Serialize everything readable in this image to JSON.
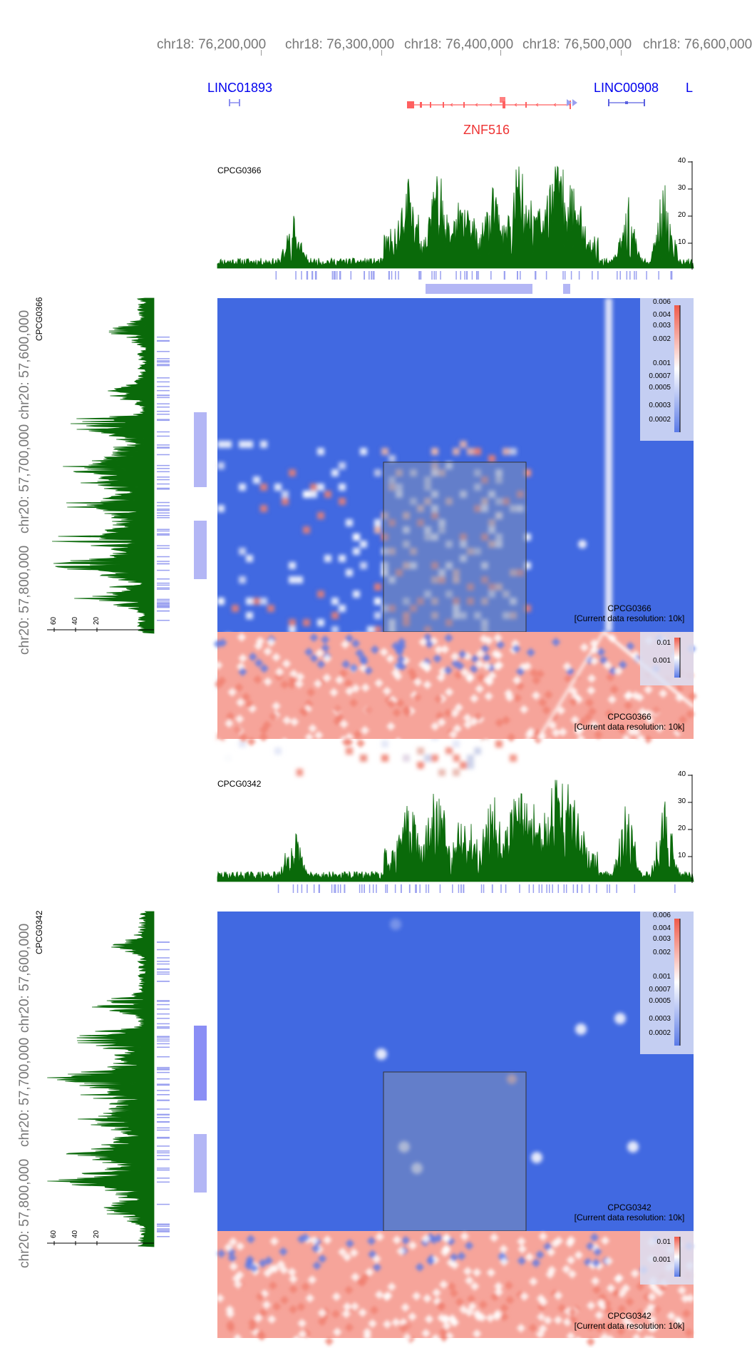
{
  "top_axis": {
    "labels": [
      "chr18: 76,200,000",
      "chr18: 76,300,000",
      "chr18: 76,400,000",
      "chr18: 76,500,000",
      "chr18: 76,600,000"
    ]
  },
  "genes": {
    "left_partial": "LINC01893",
    "main": "ZNF516",
    "right": "LINC00908",
    "far_right": "L"
  },
  "colors": {
    "signal": "#0a6a0a",
    "peaks": "#9aa0f0",
    "heatmap_base": "#4169e1",
    "gene_blue": "#0000ee",
    "gene_red": "#ee3333"
  },
  "left_axis": {
    "labels": [
      "chr20: 57,600,000",
      "chr20: 57,700,000",
      "chr20: 57,800,000"
    ],
    "ticks": [
      "60",
      "40",
      "20"
    ]
  },
  "panels": [
    {
      "sample": "CPCG0366",
      "track_ticks": [
        "40",
        "30",
        "20",
        "10"
      ],
      "legend_ticks": [
        "0.006",
        "0.004",
        "0.003",
        "0.002",
        "0.001",
        "0.0007",
        "0.0005",
        "0.0003",
        "0.0002"
      ],
      "lower_legend_ticks": [
        "0.01",
        "0.001"
      ],
      "resolution": "[Current data resolution: 10k]"
    },
    {
      "sample": "CPCG0342",
      "track_ticks": [
        "40",
        "30",
        "20",
        "10"
      ],
      "legend_ticks": [
        "0.006",
        "0.004",
        "0.003",
        "0.002",
        "0.001",
        "0.0007",
        "0.0005",
        "0.0003",
        "0.0002"
      ],
      "lower_legend_ticks": [
        "0.01",
        "0.001"
      ],
      "resolution": "[Current data resolution: 10k]"
    }
  ]
}
